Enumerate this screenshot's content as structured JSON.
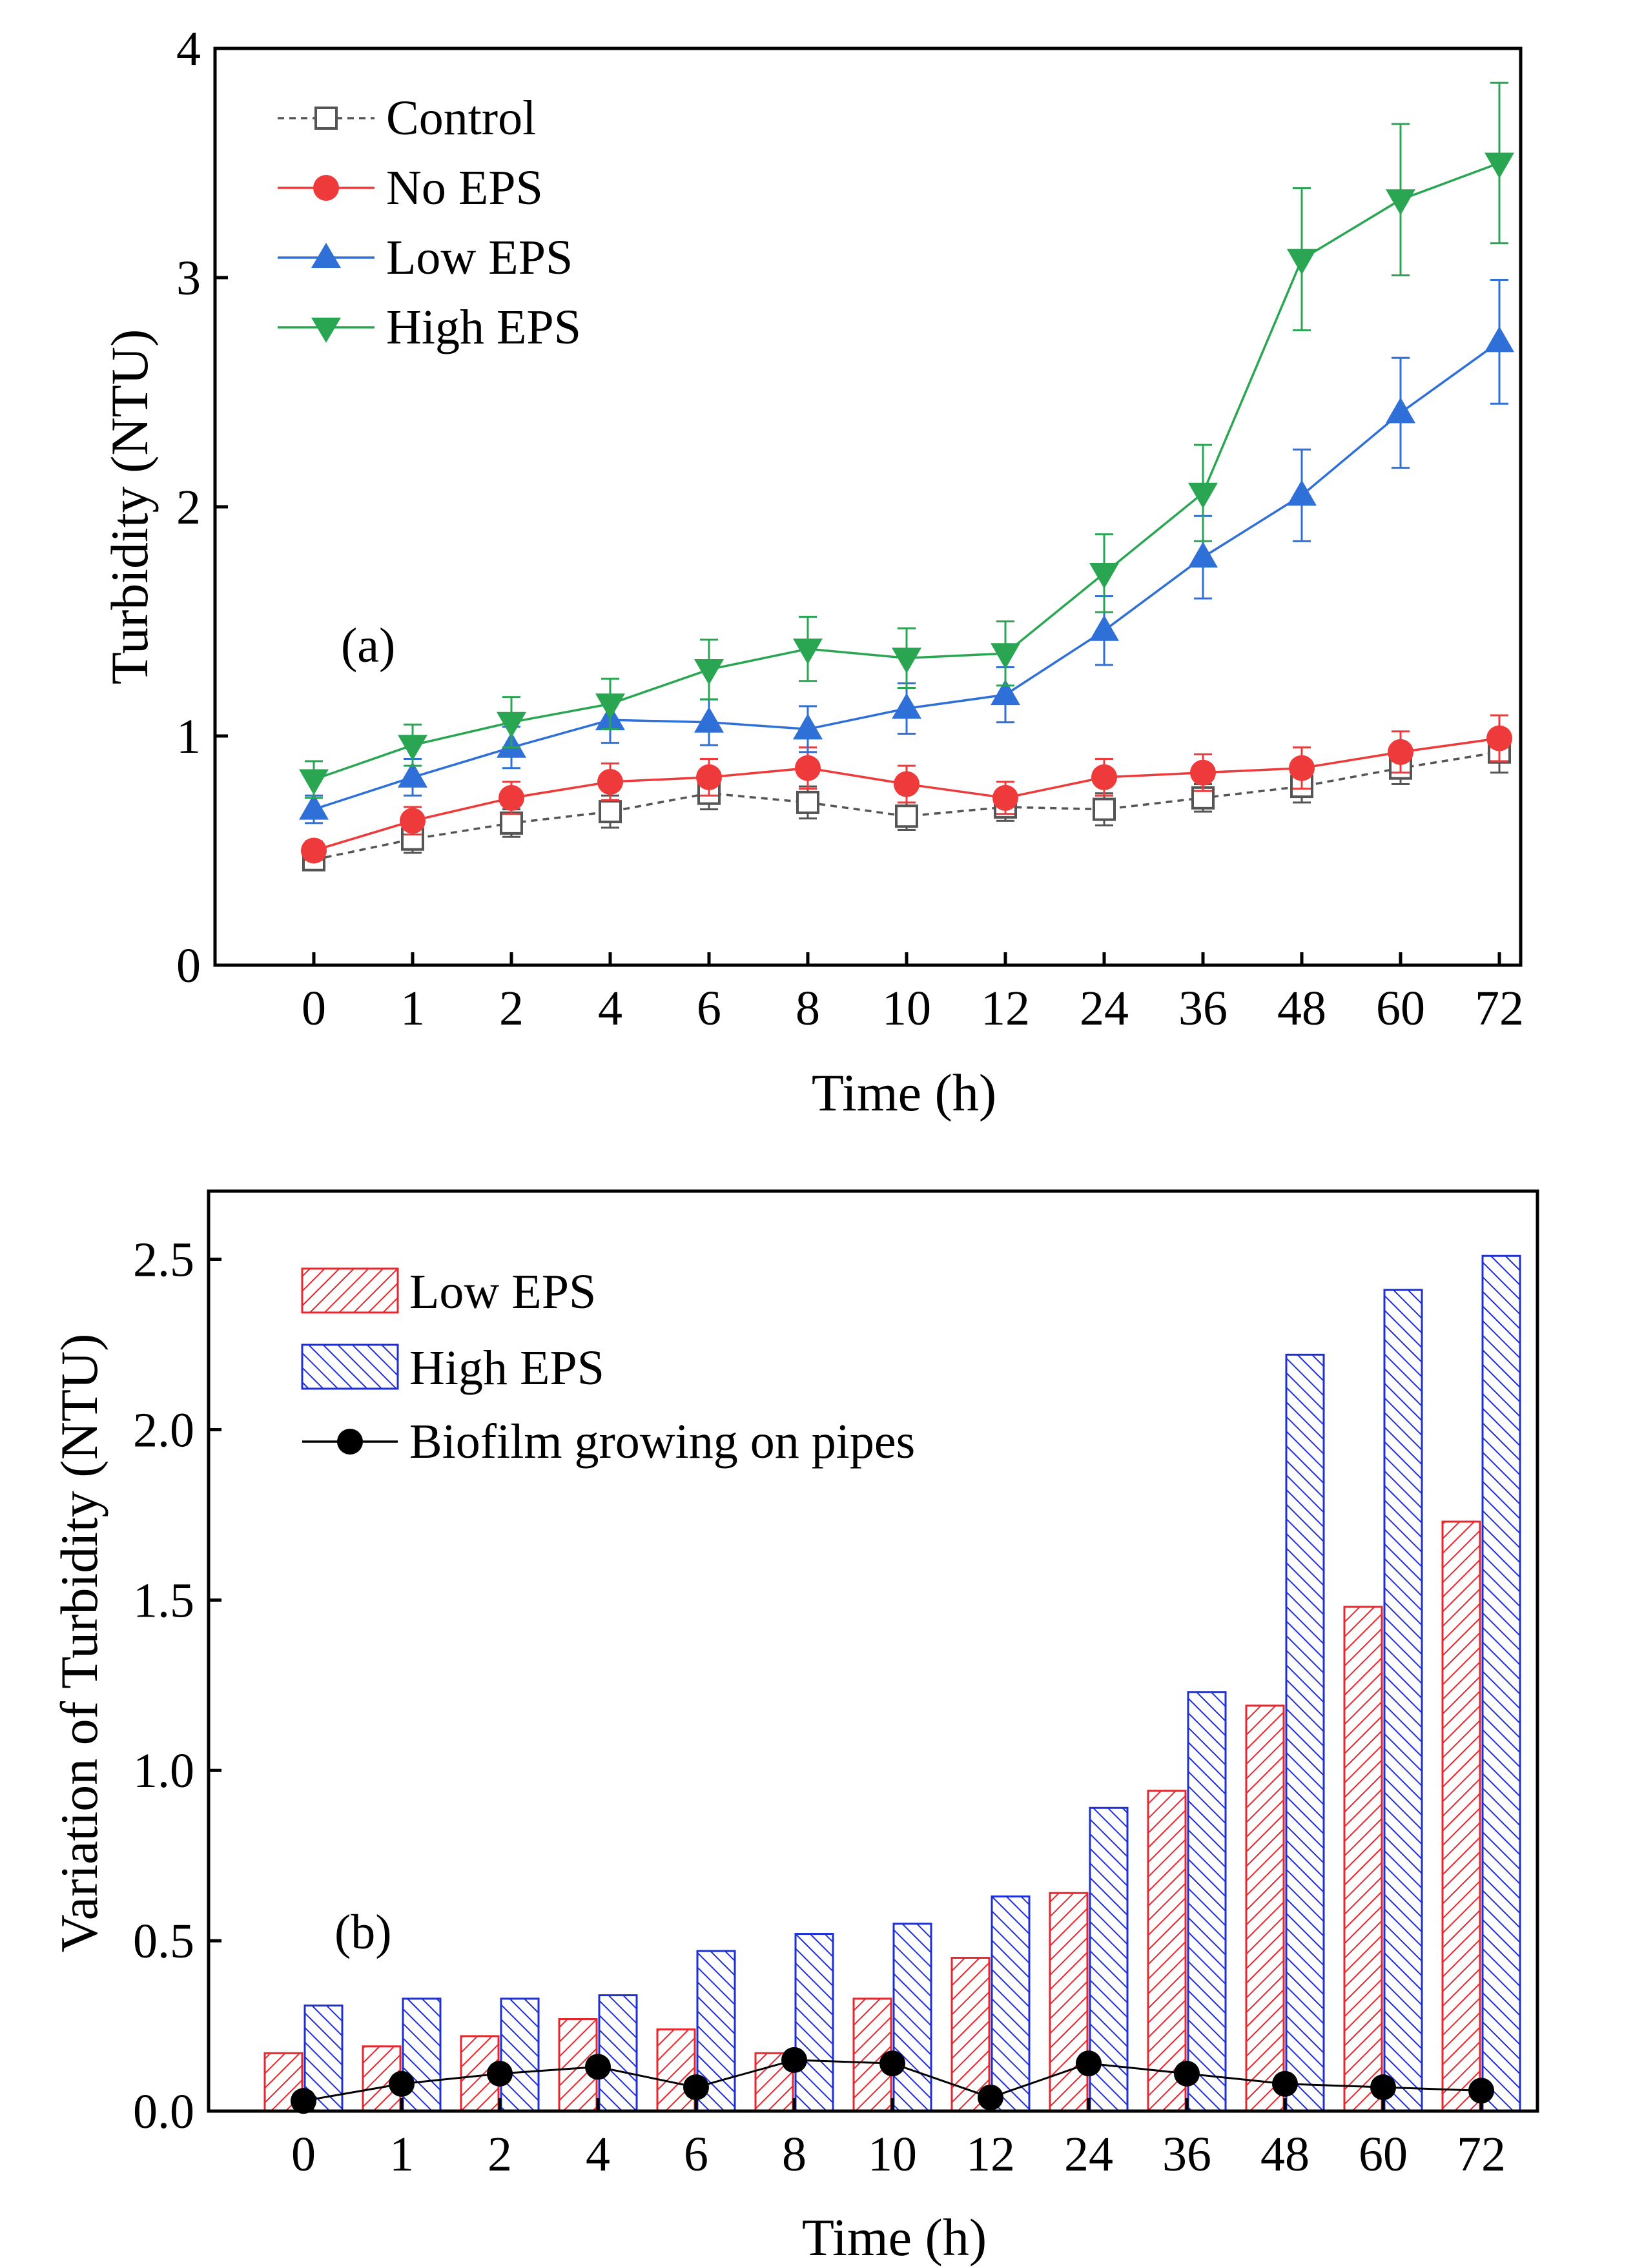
{
  "colors": {
    "control": "#555555",
    "no_eps": "#ee3a3a",
    "low_eps": "#2f6fd8",
    "high_eps": "#2aa653",
    "bar_low": "#e8262b",
    "bar_high": "#1f2fd6",
    "biofilm": "#000000"
  },
  "chart_data": [
    {
      "panel": "(a)",
      "type": "line",
      "categories": [
        "0",
        "1",
        "2",
        "4",
        "6",
        "8",
        "10",
        "12",
        "24",
        "36",
        "48",
        "60",
        "72"
      ],
      "xlabel": "Time (h)",
      "ylabel": "Turbidity (NTU)",
      "ylim": [
        0,
        4
      ],
      "yticks": [
        "0",
        "1",
        "2",
        "3",
        "4"
      ],
      "legend_position": "top-left",
      "series": [
        {
          "name": "Control",
          "marker": "open-square",
          "style": "dashed",
          "values": [
            0.46,
            0.55,
            0.62,
            0.67,
            0.75,
            0.71,
            0.65,
            0.69,
            0.68,
            0.73,
            0.78,
            0.86,
            0.93
          ],
          "errors": [
            0.04,
            0.06,
            0.06,
            0.07,
            0.07,
            0.07,
            0.06,
            0.06,
            0.07,
            0.06,
            0.07,
            0.07,
            0.09
          ]
        },
        {
          "name": "No EPS",
          "marker": "filled-circle",
          "style": "solid",
          "values": [
            0.5,
            0.63,
            0.73,
            0.8,
            0.82,
            0.86,
            0.79,
            0.73,
            0.82,
            0.84,
            0.86,
            0.93,
            0.99
          ],
          "errors": [
            0.04,
            0.06,
            0.07,
            0.08,
            0.08,
            0.09,
            0.08,
            0.07,
            0.08,
            0.08,
            0.09,
            0.09,
            0.1
          ]
        },
        {
          "name": "Low EPS",
          "marker": "filled-triangle-up",
          "style": "solid",
          "values": [
            0.68,
            0.82,
            0.95,
            1.07,
            1.06,
            1.03,
            1.12,
            1.18,
            1.46,
            1.78,
            2.05,
            2.41,
            2.72
          ],
          "errors": [
            0.06,
            0.08,
            0.09,
            0.1,
            0.1,
            0.1,
            0.11,
            0.12,
            0.15,
            0.18,
            0.2,
            0.24,
            0.27
          ]
        },
        {
          "name": "High EPS",
          "marker": "filled-triangle-down",
          "style": "solid",
          "values": [
            0.81,
            0.96,
            1.06,
            1.14,
            1.29,
            1.38,
            1.34,
            1.36,
            1.71,
            2.06,
            3.08,
            3.34,
            3.5
          ],
          "errors": [
            0.08,
            0.09,
            0.11,
            0.11,
            0.13,
            0.14,
            0.13,
            0.14,
            0.17,
            0.21,
            0.31,
            0.33,
            0.35
          ]
        }
      ]
    },
    {
      "panel": "(b)",
      "type": "bar",
      "categories": [
        "0",
        "1",
        "2",
        "4",
        "6",
        "8",
        "10",
        "12",
        "24",
        "36",
        "48",
        "60",
        "72"
      ],
      "xlabel": "Time (h)",
      "ylabel": "Variation of Turbidity (NTU)",
      "ylim": [
        0,
        2.7
      ],
      "yticks": [
        "0.0",
        "0.5",
        "1.0",
        "1.5",
        "2.0",
        "2.5"
      ],
      "legend_position": "top-left",
      "series": [
        {
          "name": "Low EPS",
          "kind": "bar",
          "hatch": "forward",
          "values": [
            0.17,
            0.19,
            0.22,
            0.27,
            0.24,
            0.17,
            0.33,
            0.45,
            0.64,
            0.94,
            1.19,
            1.48,
            1.73
          ]
        },
        {
          "name": "High EPS",
          "kind": "bar",
          "hatch": "backward",
          "values": [
            0.31,
            0.33,
            0.33,
            0.34,
            0.47,
            0.52,
            0.55,
            0.63,
            0.89,
            1.23,
            2.22,
            2.41,
            2.51
          ]
        },
        {
          "name": "Biofilm growing on pipes",
          "kind": "line",
          "marker": "filled-circle",
          "values": [
            0.03,
            0.08,
            0.11,
            0.13,
            0.07,
            0.15,
            0.14,
            0.04,
            0.14,
            0.11,
            0.08,
            0.07,
            0.06
          ]
        }
      ]
    }
  ]
}
